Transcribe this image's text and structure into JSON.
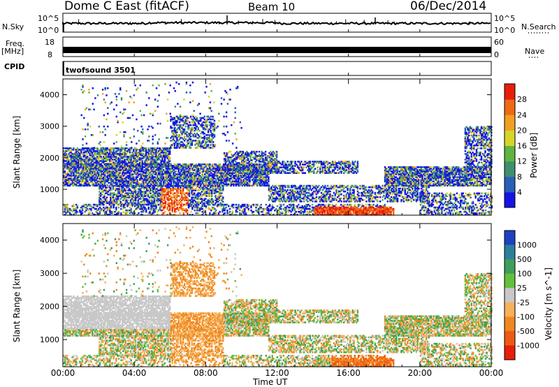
{
  "header": {
    "station": "Dome C East (fitACF)",
    "beam": "Beam 10",
    "date": "06/Dec/2014"
  },
  "top_panels": {
    "nsky_label": "N.Sky",
    "nsky_tick_top": "10^5",
    "nsky_tick_bottom": "10^0",
    "nsearch_label": "N.Search",
    "freq_label": "Freq.",
    "freq_unit": "[MHz]",
    "freq_tick_top": "18",
    "freq_tick_bottom": "8",
    "nave_label": "Nave",
    "nave_tick_top": "60",
    "nave_tick_bottom": "0",
    "cpid_label": "CPID",
    "cpid_value": "twofsound 3501"
  },
  "chart_data": [
    {
      "type": "heatmap",
      "name": "power",
      "ylabel": "Slant Range [km]",
      "yticks": [
        "1000",
        "2000",
        "3000",
        "4000"
      ],
      "ylim": [
        180,
        4500
      ],
      "colorbar_label": "Power [dB]",
      "colorbar_ticks": [
        "4",
        "8",
        "12",
        "16",
        "20",
        "24",
        "28"
      ],
      "colorbar_colors": [
        "#1414e6",
        "#2a5fb8",
        "#3f8f6e",
        "#60b440",
        "#d6d628",
        "#f0a020",
        "#ee6a14",
        "#e81e0c"
      ]
    },
    {
      "type": "heatmap",
      "name": "velocity",
      "ylabel": "Slant Range [km]",
      "yticks": [
        "1000",
        "2000",
        "3000",
        "4000"
      ],
      "ylim": [
        180,
        4500
      ],
      "colorbar_label": "Velocity [m s^-1]",
      "colorbar_ticks": [
        "1000",
        "500",
        "100",
        "25",
        "-25",
        "-100",
        "-500",
        "-1000"
      ],
      "colorbar_colors": [
        "#2040c0",
        "#2e7f9a",
        "#3e9e5a",
        "#64c03c",
        "#c8c8c8",
        "#f5b25a",
        "#f08820",
        "#ee5a14",
        "#e81e0c"
      ]
    }
  ],
  "xaxis": {
    "label": "Time UT",
    "ticks": [
      "00:00",
      "04:00",
      "08:00",
      "12:00",
      "16:00",
      "20:00",
      "00:00"
    ]
  }
}
